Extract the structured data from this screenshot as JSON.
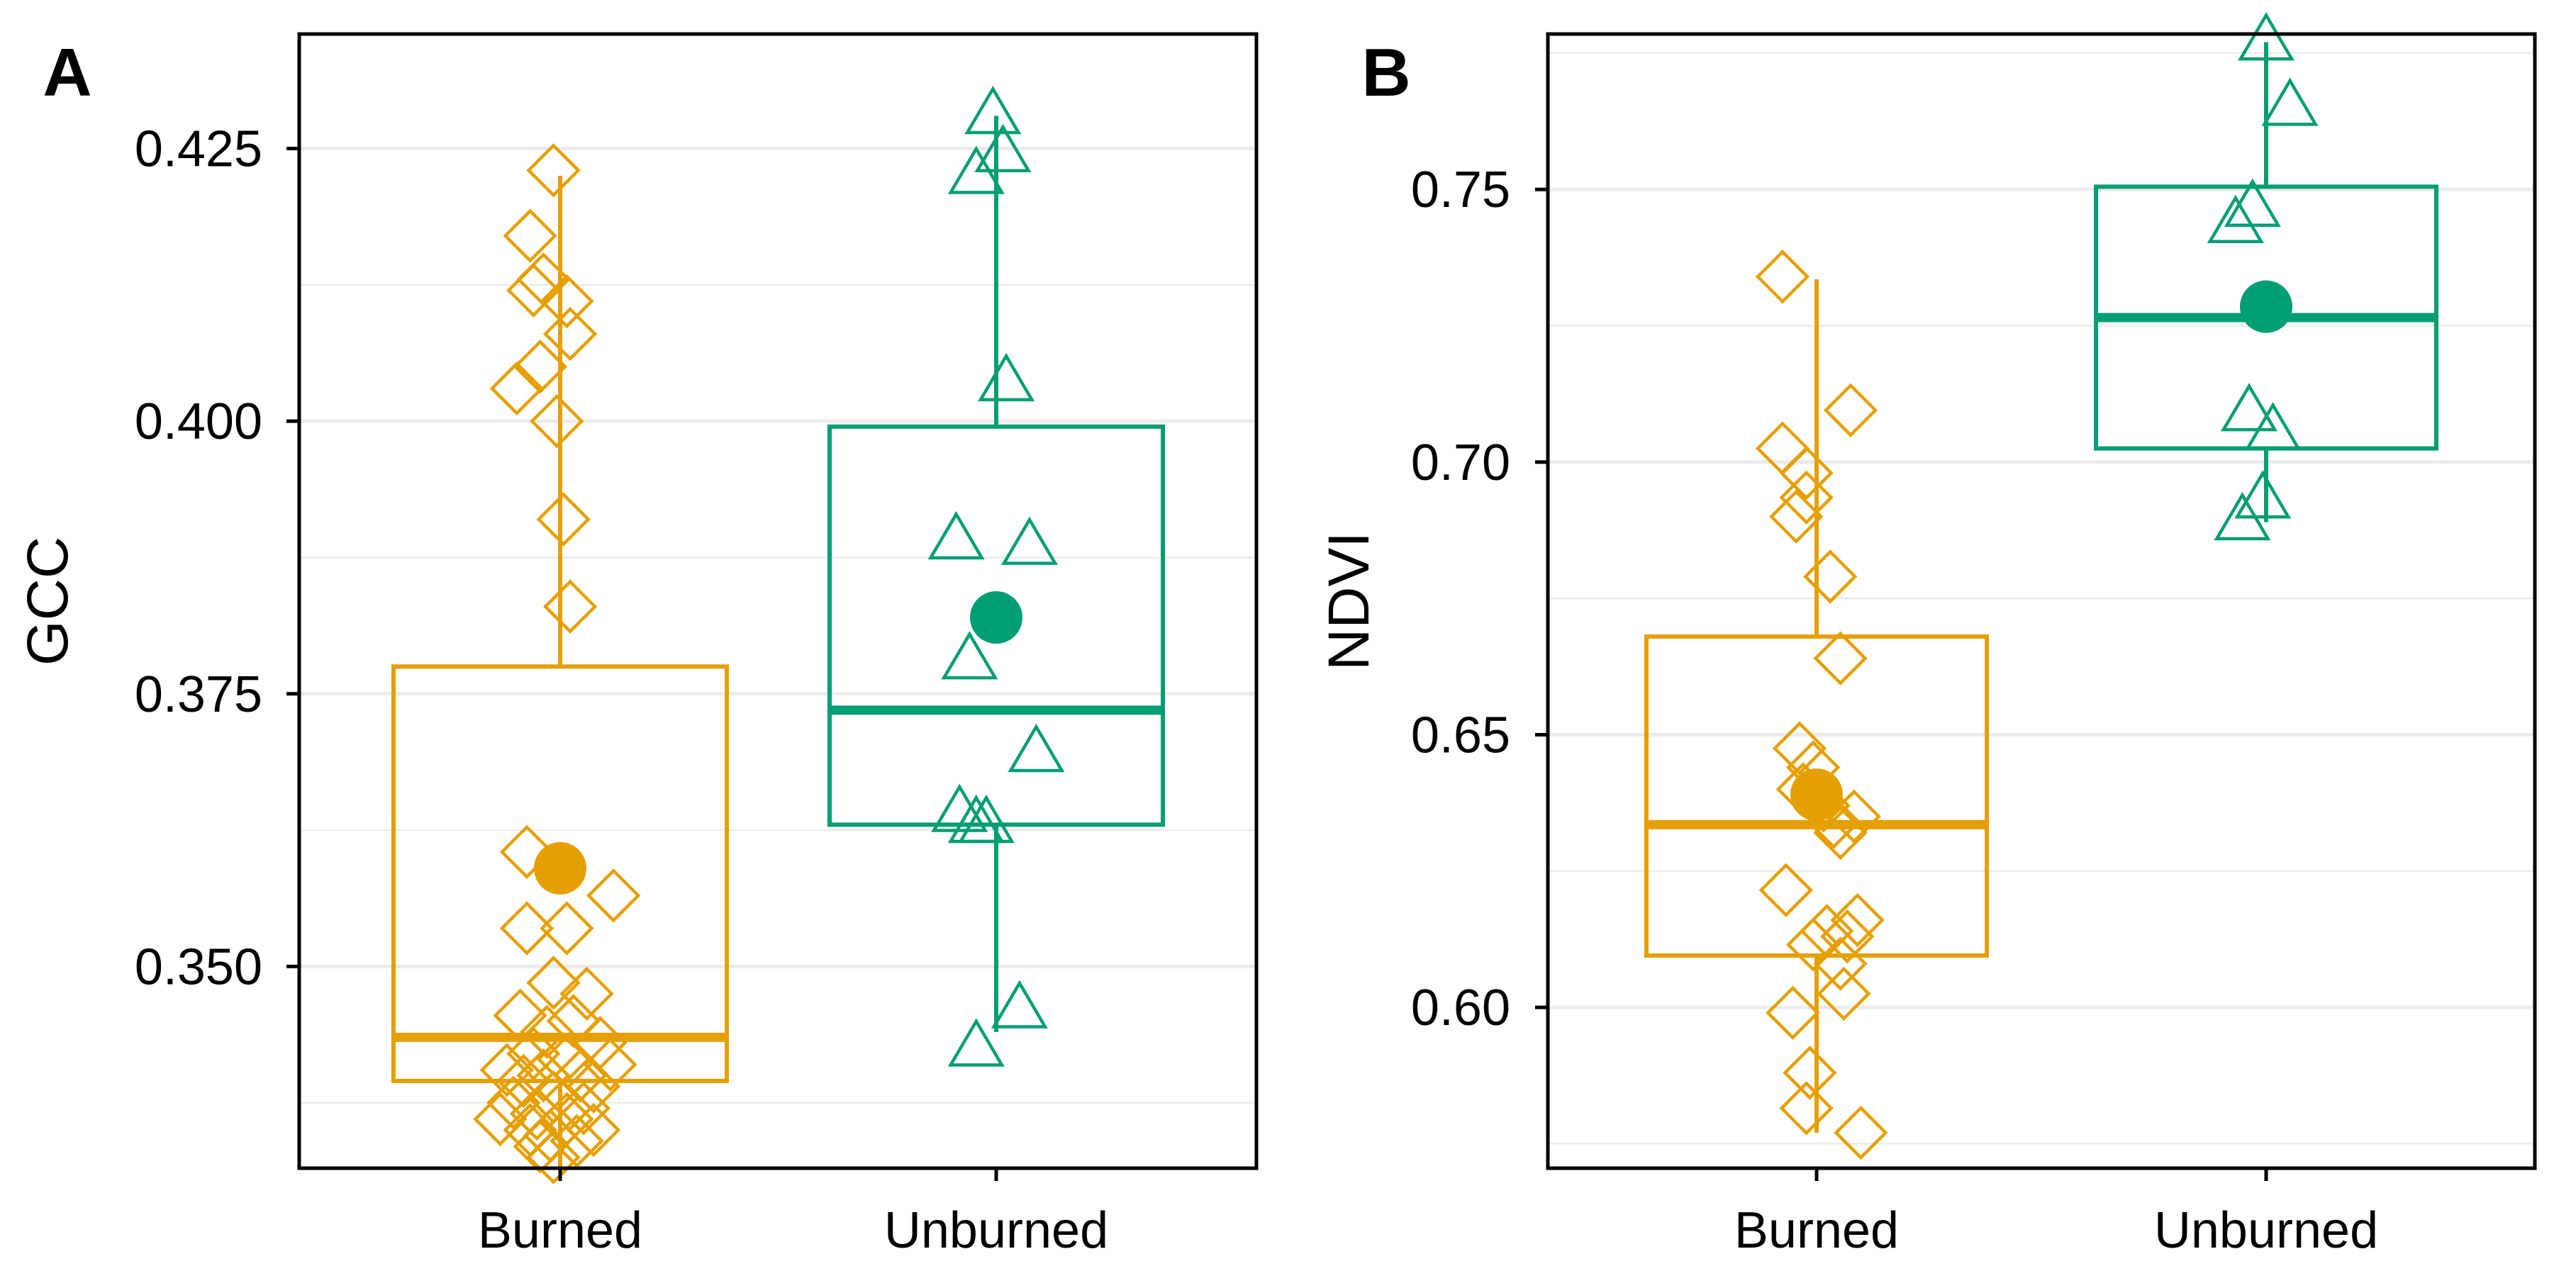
{
  "colors": {
    "burned": "#E69F00",
    "unburned": "#009E73",
    "grid": "#EBEBEB",
    "axis": "#000000"
  },
  "chart_data": [
    {
      "type": "boxplot",
      "panel_label": "A",
      "title": "",
      "xlabel": "",
      "ylabel": "GCC",
      "ylim": [
        0.3315,
        0.4355
      ],
      "yticks": [
        0.35,
        0.375,
        0.4,
        0.425
      ],
      "ytick_labels": [
        "0.350",
        "0.375",
        "0.400",
        "0.425"
      ],
      "minor_grid": [
        0.3375,
        0.3625,
        0.3875,
        0.4125
      ],
      "grid": true,
      "categories": [
        "Burned",
        "Unburned"
      ],
      "groups": [
        {
          "name": "Burned",
          "color_key": "burned",
          "marker": "diamond",
          "box": {
            "whisker_low": 0.3315,
            "q1": 0.3395,
            "median": 0.3435,
            "q3": 0.3775,
            "whisker_high": 0.4225
          },
          "mean": 0.359,
          "points": [
            [
              -0.02,
              0.423
            ],
            [
              -0.09,
              0.417
            ],
            [
              -0.05,
              0.413
            ],
            [
              -0.08,
              0.412
            ],
            [
              0.02,
              0.411
            ],
            [
              0.03,
              0.408
            ],
            [
              -0.06,
              0.405
            ],
            [
              -0.13,
              0.403
            ],
            [
              -0.01,
              0.4
            ],
            [
              0.01,
              0.391
            ],
            [
              0.03,
              0.383
            ],
            [
              -0.1,
              0.3605
            ],
            [
              0.16,
              0.3565
            ],
            [
              0.02,
              0.3535
            ],
            [
              -0.1,
              0.3535
            ],
            [
              -0.02,
              0.3485
            ],
            [
              0.08,
              0.3475
            ],
            [
              -0.12,
              0.3455
            ],
            [
              0.04,
              0.345
            ],
            [
              -0.04,
              0.344
            ],
            [
              0.12,
              0.343
            ],
            [
              -0.08,
              0.342
            ],
            [
              0.01,
              0.3415
            ],
            [
              0.15,
              0.341
            ],
            [
              -0.16,
              0.3405
            ],
            [
              -0.05,
              0.34
            ],
            [
              0.06,
              0.34
            ],
            [
              -0.11,
              0.3395
            ],
            [
              0.1,
              0.339
            ],
            [
              -0.02,
              0.338
            ],
            [
              -0.14,
              0.3375
            ],
            [
              0.07,
              0.337
            ],
            [
              -0.07,
              0.3365
            ],
            [
              -0.18,
              0.336
            ],
            [
              0.02,
              0.336
            ],
            [
              -0.09,
              0.335
            ],
            [
              0.1,
              0.335
            ],
            [
              -0.03,
              0.3345
            ],
            [
              0.05,
              0.334
            ],
            [
              -0.06,
              0.3335
            ],
            [
              -0.02,
              0.3325
            ]
          ]
        },
        {
          "name": "Unburned",
          "color_key": "unburned",
          "marker": "triangle",
          "box": {
            "whisker_low": 0.344,
            "q1": 0.363,
            "median": 0.3735,
            "q3": 0.3995,
            "whisker_high": 0.428
          },
          "mean": 0.382,
          "points": [
            [
              -0.01,
              0.428
            ],
            [
              0.02,
              0.4245
            ],
            [
              -0.06,
              0.4225
            ],
            [
              0.03,
              0.4035
            ],
            [
              -0.12,
              0.389
            ],
            [
              0.1,
              0.3885
            ],
            [
              -0.08,
              0.378
            ],
            [
              0.12,
              0.3695
            ],
            [
              -0.11,
              0.364
            ],
            [
              -0.06,
              0.363
            ],
            [
              -0.03,
              0.363
            ],
            [
              0.07,
              0.346
            ],
            [
              -0.06,
              0.3425
            ]
          ]
        }
      ]
    },
    {
      "type": "boxplot",
      "panel_label": "B",
      "title": "",
      "xlabel": "",
      "ylabel": "NDVI",
      "ylim": [
        0.5705,
        0.7785
      ],
      "yticks": [
        0.6,
        0.65,
        0.7,
        0.75
      ],
      "ytick_labels": [
        "0.60",
        "0.65",
        "0.70",
        "0.75"
      ],
      "minor_grid": [
        0.575,
        0.625,
        0.675,
        0.725,
        0.775
      ],
      "grid": true,
      "categories": [
        "Burned",
        "Unburned"
      ],
      "groups": [
        {
          "name": "Burned",
          "color_key": "burned",
          "marker": "diamond",
          "box": {
            "whisker_low": 0.577,
            "q1": 0.6095,
            "median": 0.6335,
            "q3": 0.668,
            "whisker_high": 0.7335
          },
          "mean": 0.639,
          "points": [
            [
              -0.1,
              0.734
            ],
            [
              0.1,
              0.7095
            ],
            [
              -0.1,
              0.7025
            ],
            [
              -0.03,
              0.698
            ],
            [
              -0.03,
              0.6935
            ],
            [
              -0.06,
              0.69
            ],
            [
              0.04,
              0.679
            ],
            [
              0.07,
              0.664
            ],
            [
              -0.05,
              0.6475
            ],
            [
              -0.01,
              0.644
            ],
            [
              -0.04,
              0.64
            ],
            [
              0.02,
              0.637
            ],
            [
              0.11,
              0.635
            ],
            [
              0.05,
              0.634
            ],
            [
              0.07,
              0.632
            ],
            [
              -0.09,
              0.6215
            ],
            [
              0.12,
              0.616
            ],
            [
              0.03,
              0.614
            ],
            [
              0.09,
              0.613
            ],
            [
              -0.01,
              0.6115
            ],
            [
              0.07,
              0.608
            ],
            [
              0.08,
              0.6025
            ],
            [
              -0.07,
              0.599
            ],
            [
              -0.02,
              0.588
            ],
            [
              -0.03,
              0.5815
            ],
            [
              0.13,
              0.577
            ]
          ]
        },
        {
          "name": "Unburned",
          "color_key": "unburned",
          "marker": "triangle",
          "box": {
            "whisker_low": 0.689,
            "q1": 0.7025,
            "median": 0.7265,
            "q3": 0.7505,
            "whisker_high": 0.777
          },
          "mean": 0.7285,
          "points": [
            [
              0.0,
              0.777
            ],
            [
              0.07,
              0.765
            ],
            [
              -0.04,
              0.7465
            ],
            [
              -0.09,
              0.7435
            ],
            [
              -0.05,
              0.709
            ],
            [
              0.02,
              0.7055
            ],
            [
              -0.01,
              0.693
            ],
            [
              -0.07,
              0.689
            ]
          ]
        }
      ]
    }
  ]
}
